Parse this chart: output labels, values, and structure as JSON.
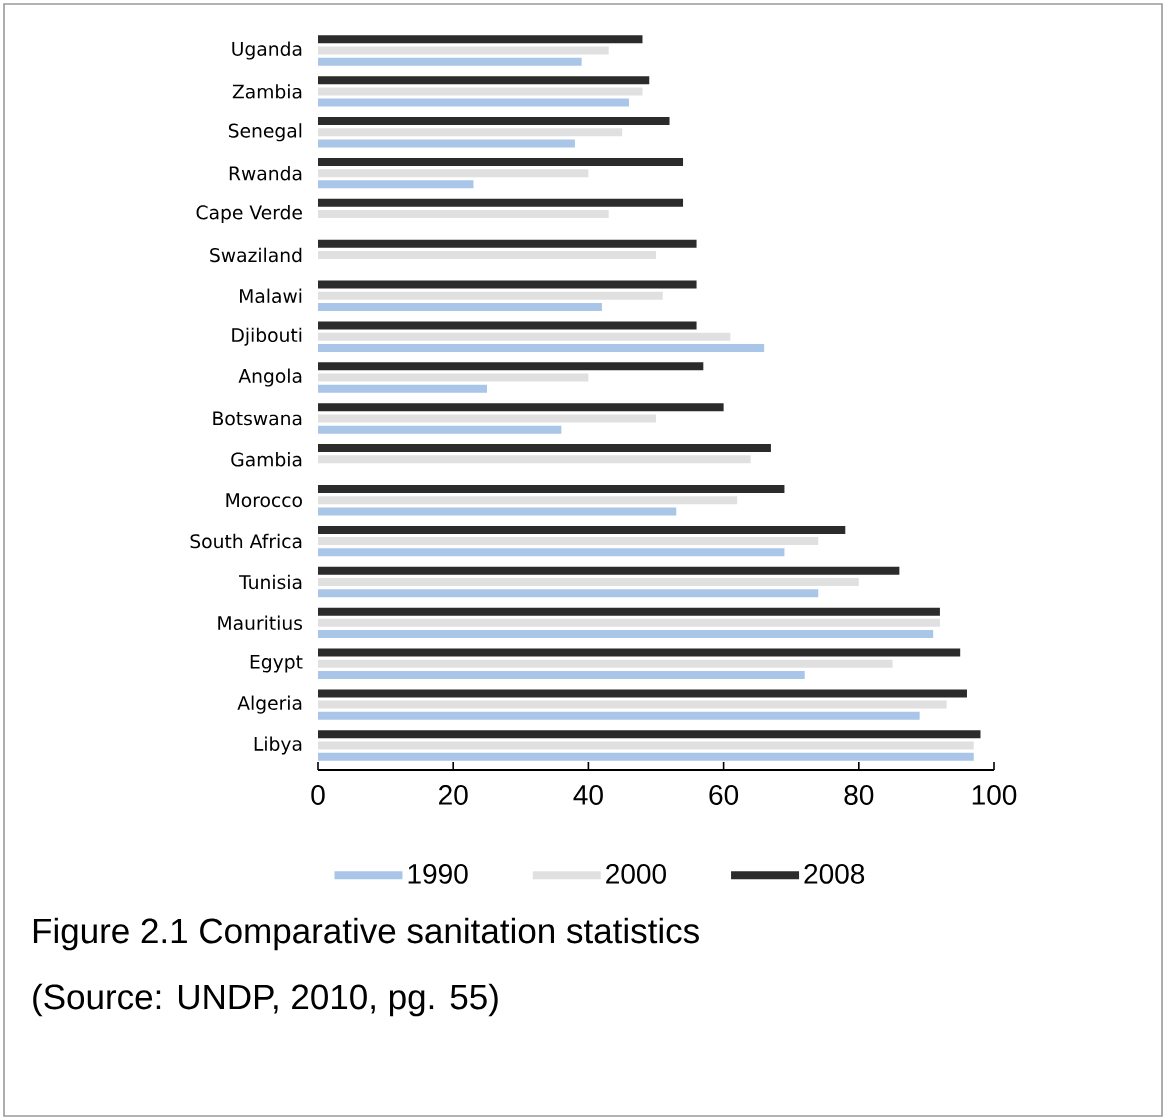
{
  "chart_data": {
    "type": "bar",
    "orientation": "horizontal",
    "categories": [
      "Uganda",
      "Zambia",
      "Senegal",
      "Rwanda",
      "Cape Verde",
      "Swaziland",
      "Malawi",
      "Djibouti",
      "Angola",
      "Botswana",
      "Gambia",
      "Morocco",
      "South Africa",
      "Tunisia",
      "Mauritius",
      "Egypt",
      "Algeria",
      "Libya"
    ],
    "series": [
      {
        "name": "1990",
        "color": "#a9c6e8",
        "values": [
          39,
          46,
          38,
          23,
          null,
          null,
          42,
          66,
          25,
          36,
          null,
          53,
          69,
          74,
          91,
          72,
          89,
          97
        ]
      },
      {
        "name": "2000",
        "color": "#e0e0e0",
        "values": [
          43,
          48,
          45,
          40,
          43,
          50,
          51,
          61,
          40,
          50,
          64,
          62,
          74,
          80,
          92,
          85,
          93,
          97
        ]
      },
      {
        "name": "2008",
        "color": "#2b2b2b",
        "values": [
          48,
          49,
          52,
          54,
          54,
          56,
          56,
          56,
          57,
          60,
          67,
          69,
          78,
          86,
          92,
          95,
          96,
          98
        ]
      }
    ],
    "xlim": [
      0,
      100
    ],
    "xticks": [
      0,
      20,
      40,
      60,
      80,
      100
    ],
    "legend": "bottom",
    "annotations": [
      "Figure 2.1 Comparative sanitation statistics",
      "(Source: UNDP, 2010, pg. 55)"
    ]
  }
}
